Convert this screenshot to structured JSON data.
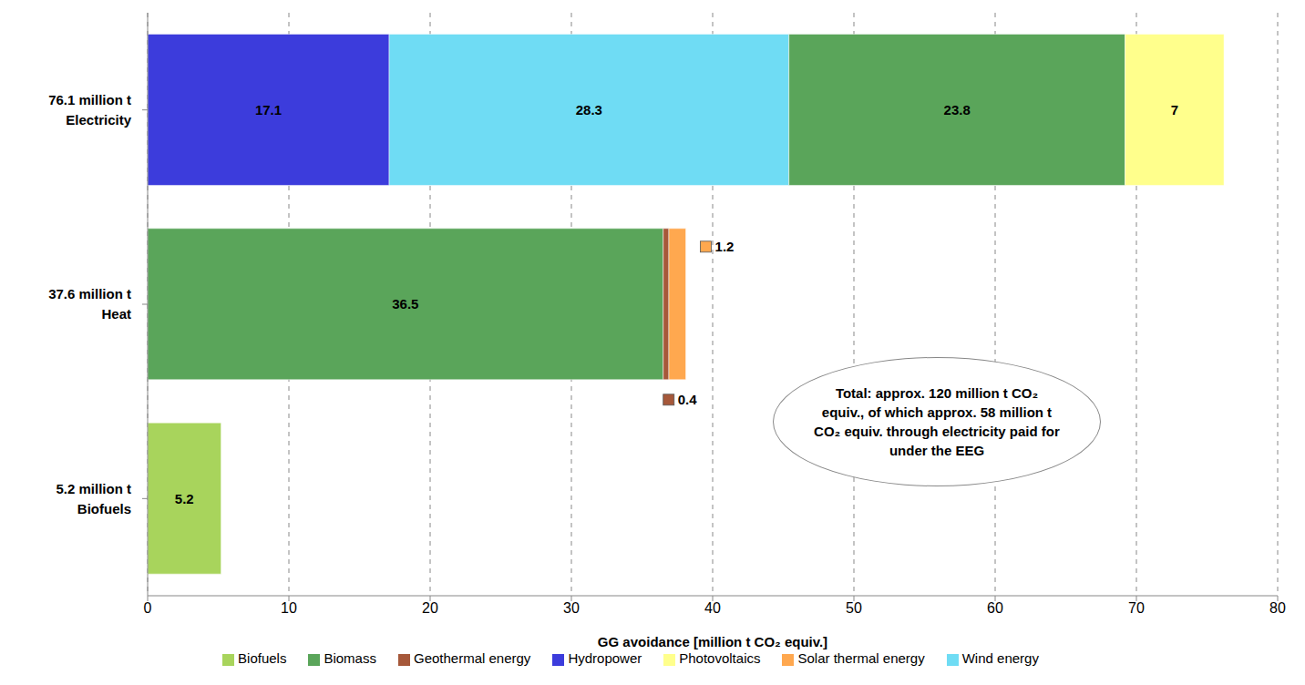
{
  "chart_data": {
    "type": "bar",
    "orientation": "horizontal",
    "stacked": true,
    "categories": [
      "76.1 million t\nElectricity",
      "37.6 million t\nHeat",
      "5.2 million t\nBiofuels"
    ],
    "series": [
      {
        "name": "Hydropower",
        "color": "#3c3cdc",
        "values": [
          17.1,
          null,
          null
        ]
      },
      {
        "name": "Wind energy",
        "color": "#6fdcf4",
        "values": [
          28.3,
          null,
          null
        ]
      },
      {
        "name": "Biomass",
        "color": "#5aa55a",
        "values": [
          23.8,
          36.5,
          null
        ]
      },
      {
        "name": "Photovoltaics",
        "color": "#ffff8c",
        "values": [
          7.0,
          null,
          null
        ]
      },
      {
        "name": "Geothermal energy",
        "color": "#a6583a",
        "values": [
          null,
          0.4,
          null
        ]
      },
      {
        "name": "Solar thermal energy",
        "color": "#ffa84f",
        "values": [
          null,
          1.2,
          null
        ]
      },
      {
        "name": "Biofuels",
        "color": "#a8d45c",
        "values": [
          null,
          null,
          5.2
        ]
      }
    ],
    "xlabel": "GG avoidance [million t CO₂ equiv.]",
    "xlim": [
      0,
      80
    ],
    "xticks": [
      0,
      10,
      20,
      30,
      40,
      50,
      60,
      70,
      80
    ],
    "grid": true,
    "data_labels": true,
    "legend": "bottom",
    "annotation": "Total: approx. 120 million t CO₂ equiv., of which approx. 58 million t CO₂ equiv. through electricity paid for under the EEG"
  }
}
